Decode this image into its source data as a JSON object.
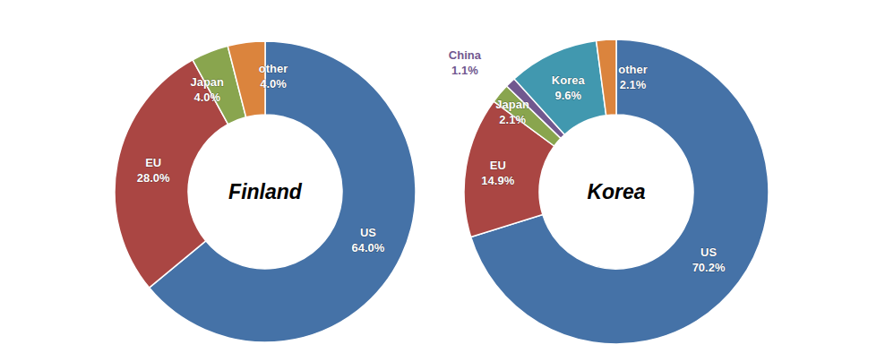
{
  "chart_data": [
    {
      "type": "donut",
      "title": "Finland",
      "categories": [
        "US",
        "EU",
        "Japan",
        "other"
      ],
      "values": [
        64.0,
        28.0,
        4.0,
        4.0
      ],
      "value_labels": [
        "64.0%",
        "28.0%",
        "4.0%",
        "4.0%"
      ],
      "colors": [
        "#4572a7",
        "#aa4643",
        "#89a54e",
        "#db843d"
      ],
      "data_labels": true
    },
    {
      "type": "donut",
      "title": "Korea",
      "categories": [
        "US",
        "EU",
        "Japan",
        "China",
        "Korea",
        "other"
      ],
      "values": [
        70.2,
        14.9,
        2.1,
        1.1,
        9.6,
        2.1
      ],
      "value_labels": [
        "70.2%",
        "14.9%",
        "2.1%",
        "1.1%",
        "9.6%",
        "2.1%"
      ],
      "colors": [
        "#4572a7",
        "#aa4643",
        "#89a54e",
        "#71588f",
        "#4198af",
        "#db843d"
      ],
      "data_labels": true
    }
  ]
}
